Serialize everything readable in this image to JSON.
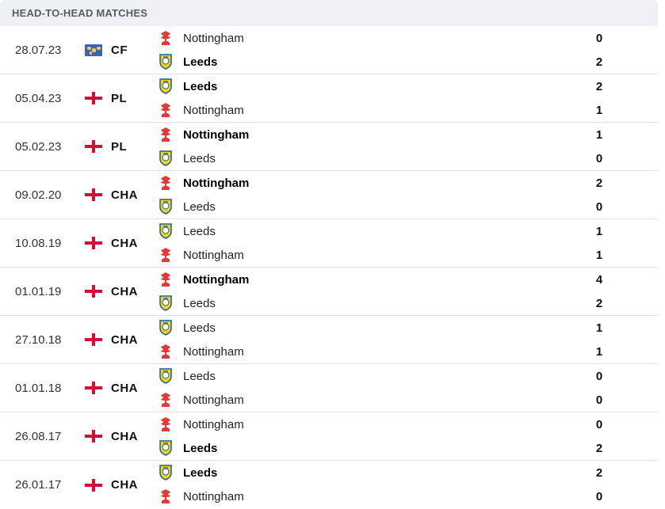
{
  "header": {
    "title": "HEAD-TO-HEAD MATCHES"
  },
  "colors": {
    "nottingham_crest": "#e53935",
    "leeds_crest_fill": "#f7d417",
    "leeds_crest_border": "#1d5c9b",
    "flag_red": "#d21034"
  },
  "matches": [
    {
      "date": "28.07.23",
      "flag": "world",
      "competition": "CF",
      "home": {
        "name": "Nottingham",
        "club": "nottingham",
        "score": "0",
        "winner": false
      },
      "away": {
        "name": "Leeds",
        "club": "leeds",
        "score": "2",
        "winner": true
      }
    },
    {
      "date": "05.04.23",
      "flag": "england",
      "competition": "PL",
      "home": {
        "name": "Leeds",
        "club": "leeds",
        "score": "2",
        "winner": true
      },
      "away": {
        "name": "Nottingham",
        "club": "nottingham",
        "score": "1",
        "winner": false
      }
    },
    {
      "date": "05.02.23",
      "flag": "england",
      "competition": "PL",
      "home": {
        "name": "Nottingham",
        "club": "nottingham",
        "score": "1",
        "winner": true
      },
      "away": {
        "name": "Leeds",
        "club": "leeds",
        "score": "0",
        "winner": false
      }
    },
    {
      "date": "09.02.20",
      "flag": "england",
      "competition": "CHA",
      "home": {
        "name": "Nottingham",
        "club": "nottingham",
        "score": "2",
        "winner": true
      },
      "away": {
        "name": "Leeds",
        "club": "leeds",
        "score": "0",
        "winner": false
      }
    },
    {
      "date": "10.08.19",
      "flag": "england",
      "competition": "CHA",
      "home": {
        "name": "Leeds",
        "club": "leeds",
        "score": "1",
        "winner": false
      },
      "away": {
        "name": "Nottingham",
        "club": "nottingham",
        "score": "1",
        "winner": false
      }
    },
    {
      "date": "01.01.19",
      "flag": "england",
      "competition": "CHA",
      "home": {
        "name": "Nottingham",
        "club": "nottingham",
        "score": "4",
        "winner": true
      },
      "away": {
        "name": "Leeds",
        "club": "leeds",
        "score": "2",
        "winner": false
      }
    },
    {
      "date": "27.10.18",
      "flag": "england",
      "competition": "CHA",
      "home": {
        "name": "Leeds",
        "club": "leeds",
        "score": "1",
        "winner": false
      },
      "away": {
        "name": "Nottingham",
        "club": "nottingham",
        "score": "1",
        "winner": false
      }
    },
    {
      "date": "01.01.18",
      "flag": "england",
      "competition": "CHA",
      "home": {
        "name": "Leeds",
        "club": "leeds",
        "score": "0",
        "winner": false
      },
      "away": {
        "name": "Nottingham",
        "club": "nottingham",
        "score": "0",
        "winner": false
      }
    },
    {
      "date": "26.08.17",
      "flag": "england",
      "competition": "CHA",
      "home": {
        "name": "Nottingham",
        "club": "nottingham",
        "score": "0",
        "winner": false
      },
      "away": {
        "name": "Leeds",
        "club": "leeds",
        "score": "2",
        "winner": true
      }
    },
    {
      "date": "26.01.17",
      "flag": "england",
      "competition": "CHA",
      "home": {
        "name": "Leeds",
        "club": "leeds",
        "score": "2",
        "winner": true
      },
      "away": {
        "name": "Nottingham",
        "club": "nottingham",
        "score": "0",
        "winner": false
      }
    }
  ]
}
